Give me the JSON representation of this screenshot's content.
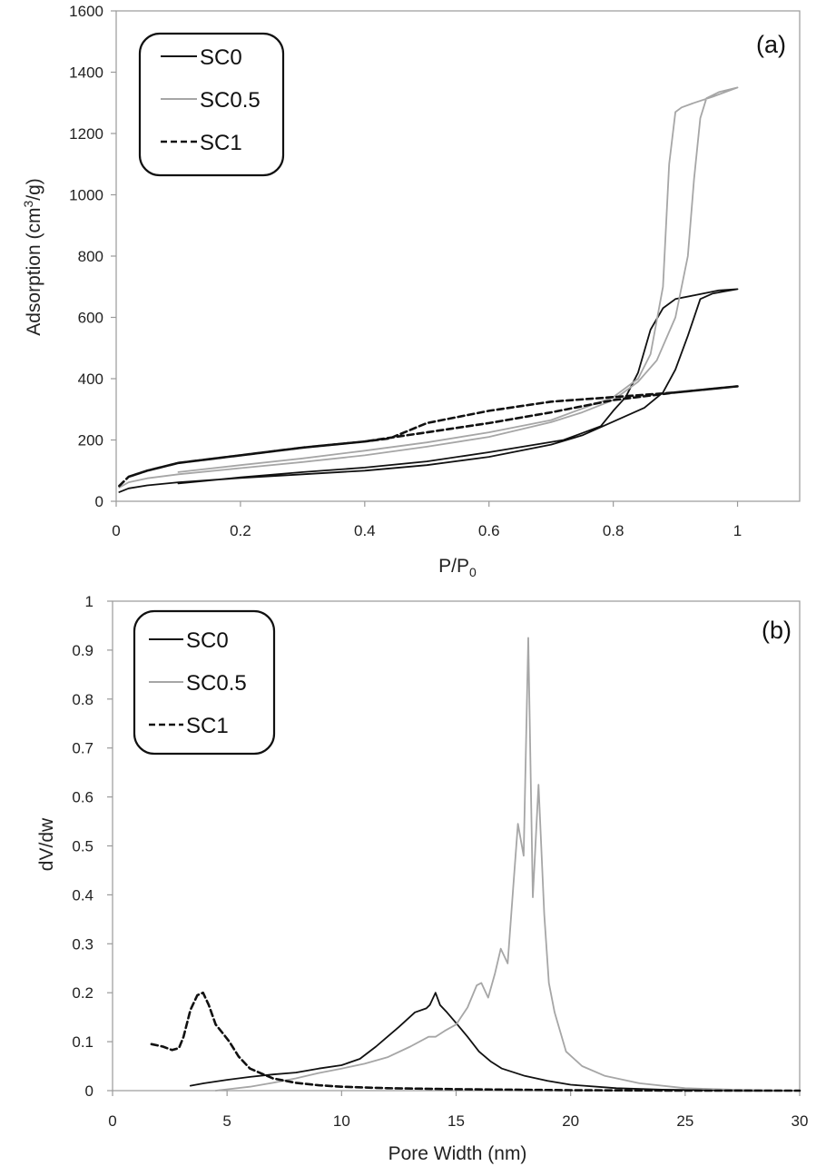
{
  "chart_data": [
    {
      "type": "line",
      "panel_label": "(a)",
      "xlabel_main": "P/P",
      "xlabel_sub": "0",
      "ylabel_main": "Adsorption (cm",
      "ylabel_sup": "3",
      "ylabel_end": "/g)",
      "xlim": [
        0,
        1.1
      ],
      "ylim": [
        0,
        1600
      ],
      "xticks": [
        "0",
        "0.2",
        "0.4",
        "0.6",
        "0.8",
        "1"
      ],
      "yticks": [
        "0",
        "200",
        "400",
        "600",
        "800",
        "1000",
        "1200",
        "1400",
        "1600"
      ],
      "legend_position": "top-left",
      "series": [
        {
          "name": "SC0",
          "color": "#111111",
          "dash": "solid",
          "x": [
            0.005,
            0.02,
            0.05,
            0.1,
            0.2,
            0.3,
            0.4,
            0.5,
            0.6,
            0.7,
            0.75,
            0.8,
            0.85,
            0.88,
            0.9,
            0.92,
            0.94,
            0.96,
            0.98,
            1.0,
            0.97,
            0.93,
            0.9,
            0.88,
            0.86,
            0.84,
            0.82,
            0.8,
            0.78,
            0.72,
            0.6,
            0.5,
            0.4,
            0.3,
            0.2,
            0.1
          ],
          "y": [
            30,
            42,
            52,
            62,
            76,
            88,
            100,
            118,
            145,
            185,
            215,
            260,
            305,
            355,
            430,
            540,
            660,
            678,
            685,
            692,
            688,
            672,
            660,
            630,
            560,
            420,
            340,
            295,
            245,
            200,
            160,
            130,
            110,
            95,
            78,
            58
          ]
        },
        {
          "name": "SC0.5",
          "color": "#a6a6a6",
          "dash": "solid",
          "x": [
            0.005,
            0.02,
            0.05,
            0.1,
            0.2,
            0.3,
            0.4,
            0.5,
            0.6,
            0.7,
            0.75,
            0.8,
            0.84,
            0.87,
            0.9,
            0.92,
            0.93,
            0.94,
            0.95,
            0.97,
            1.0,
            0.96,
            0.93,
            0.91,
            0.9,
            0.89,
            0.88,
            0.86,
            0.84,
            0.8,
            0.7,
            0.6,
            0.5,
            0.4,
            0.3,
            0.2,
            0.1
          ],
          "y": [
            45,
            62,
            75,
            88,
            108,
            128,
            150,
            178,
            210,
            258,
            290,
            330,
            390,
            460,
            600,
            800,
            1050,
            1250,
            1315,
            1335,
            1350,
            1320,
            1300,
            1285,
            1270,
            1100,
            700,
            480,
            400,
            340,
            265,
            225,
            192,
            165,
            140,
            118,
            95
          ]
        },
        {
          "name": "SC1",
          "color": "#111111",
          "dash": "dashed",
          "x": [
            0.005,
            0.02,
            0.05,
            0.1,
            0.2,
            0.3,
            0.4,
            0.44,
            0.5,
            0.6,
            0.7,
            0.8,
            0.9,
            1.0,
            0.9,
            0.8,
            0.7,
            0.6,
            0.5,
            0.45,
            0.4,
            0.3,
            0.2,
            0.1,
            0.05,
            0.02
          ],
          "y": [
            50,
            80,
            100,
            125,
            150,
            175,
            195,
            205,
            255,
            295,
            325,
            340,
            355,
            375,
            355,
            330,
            290,
            255,
            225,
            210,
            195,
            175,
            150,
            125,
            100,
            80
          ]
        }
      ]
    },
    {
      "type": "line",
      "panel_label": "(b)",
      "xlabel": "Pore Width (nm)",
      "ylabel": "dV/dw",
      "xlim": [
        0,
        30
      ],
      "ylim": [
        0,
        1
      ],
      "xticks": [
        "0",
        "5",
        "10",
        "15",
        "20",
        "25",
        "30"
      ],
      "yticks": [
        "0",
        "0.1",
        "0.2",
        "0.3",
        "0.4",
        "0.5",
        "0.6",
        "0.7",
        "0.8",
        "0.9",
        "1"
      ],
      "legend_position": "top-left",
      "series": [
        {
          "name": "SC0",
          "color": "#111111",
          "dash": "solid",
          "x": [
            3.4,
            4,
            5,
            6,
            7,
            8,
            9,
            10,
            10.8,
            11.5,
            12.5,
            13.2,
            13.7,
            13.85,
            14.1,
            14.3,
            14.6,
            15,
            15.5,
            16,
            16.5,
            17,
            18,
            19,
            20,
            22,
            24,
            26,
            28,
            30
          ],
          "y": [
            0.01,
            0.015,
            0.022,
            0.028,
            0.033,
            0.037,
            0.045,
            0.052,
            0.065,
            0.09,
            0.13,
            0.16,
            0.168,
            0.175,
            0.2,
            0.175,
            0.16,
            0.138,
            0.11,
            0.08,
            0.06,
            0.045,
            0.03,
            0.02,
            0.012,
            0.005,
            0.002,
            0.001,
            0.0,
            0.0
          ]
        },
        {
          "name": "SC0.5",
          "color": "#a6a6a6",
          "dash": "solid",
          "x": [
            4.5,
            6,
            7,
            8,
            9,
            10,
            11,
            12,
            13,
            13.8,
            14.1,
            14.5,
            15,
            15.5,
            15.9,
            16.1,
            16.4,
            16.7,
            16.95,
            17.25,
            17.5,
            17.7,
            17.95,
            18.15,
            18.35,
            18.6,
            18.85,
            19.05,
            19.3,
            19.8,
            20.5,
            21.5,
            23,
            25,
            27,
            30
          ],
          "y": [
            0.0,
            0.008,
            0.016,
            0.025,
            0.036,
            0.045,
            0.055,
            0.068,
            0.09,
            0.11,
            0.11,
            0.122,
            0.135,
            0.17,
            0.215,
            0.22,
            0.19,
            0.24,
            0.29,
            0.26,
            0.42,
            0.545,
            0.48,
            0.925,
            0.395,
            0.625,
            0.36,
            0.22,
            0.16,
            0.08,
            0.05,
            0.03,
            0.015,
            0.005,
            0.002,
            0.0
          ]
        },
        {
          "name": "SC1",
          "color": "#111111",
          "dash": "dashed",
          "x": [
            1.7,
            2.2,
            2.6,
            2.9,
            3.1,
            3.4,
            3.7,
            3.95,
            4.2,
            4.5,
            4.8,
            5.1,
            5.5,
            6,
            7,
            8,
            9,
            10,
            12,
            15,
            20,
            25,
            30
          ],
          "y": [
            0.095,
            0.09,
            0.083,
            0.087,
            0.11,
            0.165,
            0.195,
            0.2,
            0.175,
            0.135,
            0.118,
            0.1,
            0.07,
            0.045,
            0.025,
            0.016,
            0.011,
            0.008,
            0.005,
            0.003,
            0.001,
            0.0,
            0.0
          ]
        }
      ]
    }
  ]
}
